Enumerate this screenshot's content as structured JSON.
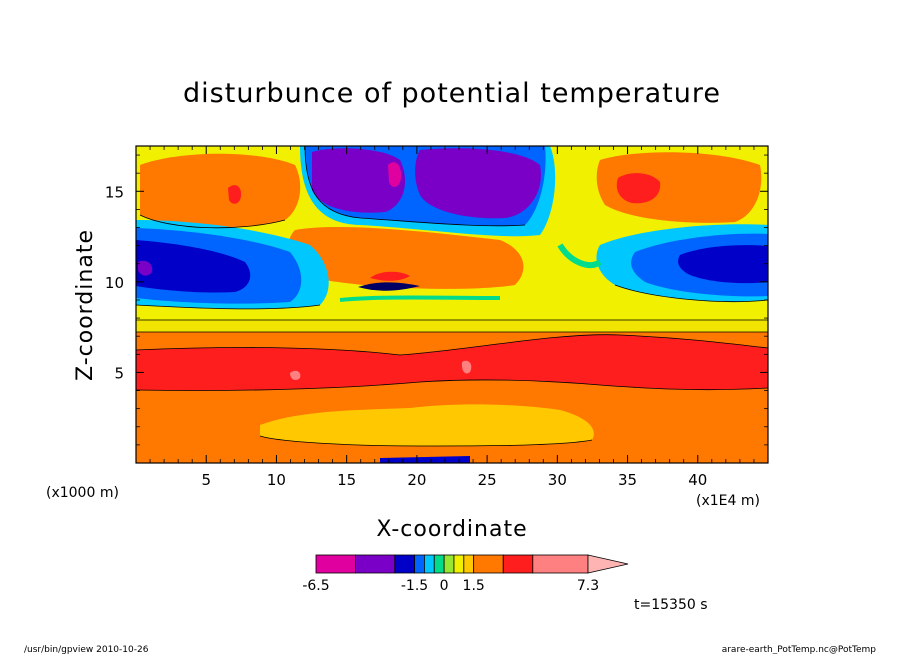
{
  "chart_data": {
    "type": "heatmap",
    "title": "disturbunce of potential temperature",
    "xlabel": "X-coordinate",
    "ylabel": "Z-coordinate",
    "x_unit_note": "(x1E4 m)",
    "y_unit_note": "(x1000 m)",
    "xlim": [
      0,
      45
    ],
    "ylim": [
      0,
      17.5
    ],
    "x_ticks": [
      5,
      10,
      15,
      20,
      25,
      30,
      35,
      40
    ],
    "y_ticks": [
      5,
      10,
      15
    ],
    "colorbar": {
      "labels": [
        {
          "text": "-6.5",
          "value": -6.5
        },
        {
          "text": "-1.5",
          "value": -1.5
        },
        {
          "text": "0",
          "value": 0
        },
        {
          "text": "1.5",
          "value": 1.5
        },
        {
          "text": "7.3",
          "value": 7.3
        }
      ],
      "levels": [
        -6.5,
        -4.5,
        -2.5,
        -1.5,
        -1.0,
        -0.5,
        0,
        0.5,
        1.0,
        1.5,
        3.0,
        4.5,
        7.3
      ],
      "colors": [
        "#e000a0",
        "#7a00c8",
        "#0000c8",
        "#0064ff",
        "#00c8ff",
        "#00dc8c",
        "#96e632",
        "#f0f000",
        "#ffc800",
        "#ff7800",
        "#ff1e1e",
        "#ff8080",
        "#ffb4b4"
      ]
    },
    "time_label": "t=15350 s"
  },
  "footer": {
    "left": "/usr/bin/gpview  2010-10-26",
    "right": "arare-earth_PotTemp.nc@PotTemp"
  }
}
